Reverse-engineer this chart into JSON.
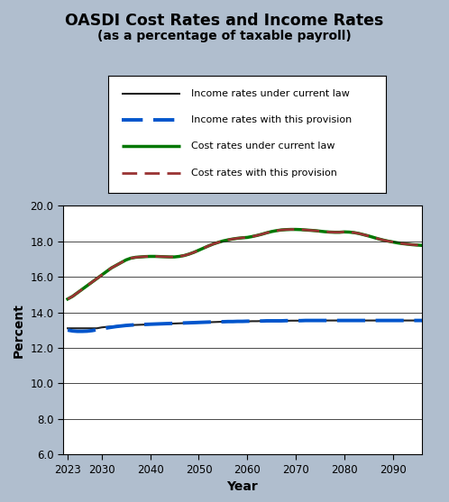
{
  "title": "OASDI Cost Rates and Income Rates",
  "subtitle": "(as a percentage of taxable payroll)",
  "xlabel": "Year",
  "ylabel": "Percent",
  "ylim": [
    6.0,
    20.0
  ],
  "yticks": [
    6.0,
    8.0,
    10.0,
    12.0,
    14.0,
    16.0,
    18.0,
    20.0
  ],
  "xticks": [
    2023,
    2030,
    2040,
    2050,
    2060,
    2070,
    2080,
    2090
  ],
  "xlim": [
    2022,
    2096
  ],
  "bg_color": "#b0bece",
  "plot_bg_color": "#ffffff",
  "legend_labels": [
    "Income rates under current law",
    "Income rates with this provision",
    "Cost rates under current law",
    "Cost rates with this provision"
  ],
  "years": [
    2023,
    2024,
    2025,
    2026,
    2027,
    2028,
    2029,
    2030,
    2031,
    2032,
    2033,
    2034,
    2035,
    2036,
    2037,
    2038,
    2039,
    2040,
    2041,
    2042,
    2043,
    2044,
    2045,
    2046,
    2047,
    2048,
    2049,
    2050,
    2051,
    2052,
    2053,
    2054,
    2055,
    2056,
    2057,
    2058,
    2059,
    2060,
    2061,
    2062,
    2063,
    2064,
    2065,
    2066,
    2067,
    2068,
    2069,
    2070,
    2071,
    2072,
    2073,
    2074,
    2075,
    2076,
    2077,
    2078,
    2079,
    2080,
    2081,
    2082,
    2083,
    2084,
    2085,
    2086,
    2087,
    2088,
    2089,
    2090,
    2091,
    2092,
    2093,
    2094,
    2095,
    2096
  ],
  "income_current_law": [
    13.1,
    13.1,
    13.1,
    13.1,
    13.1,
    13.1,
    13.1,
    13.15,
    13.18,
    13.2,
    13.22,
    13.25,
    13.27,
    13.28,
    13.29,
    13.3,
    13.31,
    13.32,
    13.33,
    13.34,
    13.35,
    13.36,
    13.37,
    13.38,
    13.39,
    13.4,
    13.41,
    13.42,
    13.43,
    13.44,
    13.45,
    13.46,
    13.47,
    13.47,
    13.48,
    13.48,
    13.49,
    13.49,
    13.5,
    13.5,
    13.51,
    13.51,
    13.52,
    13.52,
    13.52,
    13.52,
    13.53,
    13.53,
    13.53,
    13.53,
    13.54,
    13.54,
    13.54,
    13.54,
    13.54,
    13.54,
    13.54,
    13.54,
    13.54,
    13.54,
    13.54,
    13.54,
    13.54,
    13.54,
    13.54,
    13.54,
    13.54,
    13.54,
    13.54,
    13.54,
    13.54,
    13.54,
    13.54,
    13.54
  ],
  "income_provision": [
    13.0,
    12.95,
    12.93,
    12.93,
    12.94,
    12.97,
    13.02,
    13.08,
    13.12,
    13.16,
    13.2,
    13.23,
    13.26,
    13.28,
    13.3,
    13.31,
    13.32,
    13.33,
    13.34,
    13.35,
    13.36,
    13.37,
    13.38,
    13.39,
    13.4,
    13.41,
    13.42,
    13.43,
    13.44,
    13.45,
    13.46,
    13.47,
    13.47,
    13.48,
    13.48,
    13.49,
    13.49,
    13.5,
    13.5,
    13.51,
    13.51,
    13.52,
    13.52,
    13.52,
    13.52,
    13.53,
    13.53,
    13.53,
    13.53,
    13.54,
    13.54,
    13.54,
    13.54,
    13.54,
    13.54,
    13.54,
    13.54,
    13.54,
    13.54,
    13.54,
    13.54,
    13.54,
    13.54,
    13.54,
    13.54,
    13.54,
    13.54,
    13.54,
    13.54,
    13.54,
    13.54,
    13.54,
    13.54,
    13.54
  ],
  "cost_current_law": [
    14.75,
    14.9,
    15.1,
    15.3,
    15.5,
    15.7,
    15.9,
    16.1,
    16.3,
    16.5,
    16.65,
    16.8,
    16.95,
    17.05,
    17.1,
    17.12,
    17.14,
    17.15,
    17.15,
    17.14,
    17.13,
    17.12,
    17.12,
    17.15,
    17.2,
    17.28,
    17.38,
    17.5,
    17.62,
    17.74,
    17.85,
    17.94,
    18.02,
    18.08,
    18.13,
    18.17,
    18.2,
    18.22,
    18.27,
    18.33,
    18.4,
    18.48,
    18.55,
    18.6,
    18.64,
    18.66,
    18.67,
    18.67,
    18.66,
    18.64,
    18.62,
    18.6,
    18.57,
    18.54,
    18.52,
    18.51,
    18.51,
    18.53,
    18.52,
    18.49,
    18.44,
    18.37,
    18.3,
    18.22,
    18.14,
    18.07,
    18.01,
    17.96,
    17.91,
    17.87,
    17.84,
    17.81,
    17.79,
    17.77
  ],
  "cost_provision": [
    14.75,
    14.9,
    15.1,
    15.3,
    15.5,
    15.7,
    15.9,
    16.1,
    16.3,
    16.5,
    16.65,
    16.8,
    16.95,
    17.05,
    17.1,
    17.12,
    17.14,
    17.15,
    17.15,
    17.14,
    17.13,
    17.12,
    17.12,
    17.15,
    17.2,
    17.28,
    17.38,
    17.5,
    17.62,
    17.74,
    17.85,
    17.94,
    18.02,
    18.08,
    18.13,
    18.17,
    18.2,
    18.22,
    18.27,
    18.33,
    18.4,
    18.48,
    18.55,
    18.6,
    18.64,
    18.66,
    18.67,
    18.67,
    18.66,
    18.64,
    18.62,
    18.6,
    18.57,
    18.54,
    18.52,
    18.51,
    18.51,
    18.53,
    18.52,
    18.49,
    18.44,
    18.37,
    18.3,
    18.22,
    18.14,
    18.07,
    18.01,
    17.96,
    17.91,
    17.87,
    17.84,
    17.81,
    17.79,
    17.77
  ]
}
